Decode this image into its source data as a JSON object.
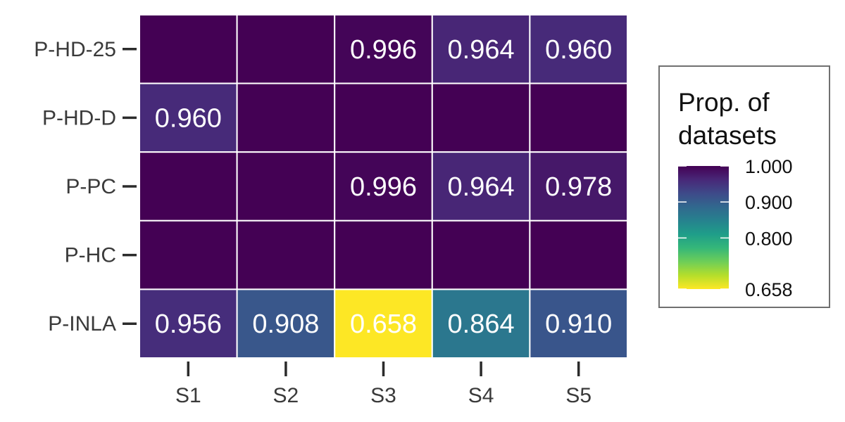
{
  "chart_data": {
    "type": "heatmap",
    "x_categories": [
      "S1",
      "S2",
      "S3",
      "S4",
      "S5"
    ],
    "y_categories": [
      "P-HD-25",
      "P-HD-D",
      "P-PC",
      "P-HC",
      "P-INLA"
    ],
    "values": [
      [
        1.0,
        1.0,
        0.996,
        0.964,
        0.96
      ],
      [
        0.96,
        1.0,
        1.0,
        1.0,
        1.0
      ],
      [
        1.0,
        1.0,
        0.996,
        0.964,
        0.978
      ],
      [
        1.0,
        1.0,
        1.0,
        1.0,
        1.0
      ],
      [
        0.956,
        0.908,
        0.658,
        0.864,
        0.91
      ]
    ],
    "labels": [
      [
        "",
        "",
        "0.996",
        "0.964",
        "0.960"
      ],
      [
        "0.960",
        "",
        "",
        "",
        ""
      ],
      [
        "",
        "",
        "0.996",
        "0.964",
        "0.978"
      ],
      [
        "",
        "",
        "",
        "",
        ""
      ],
      [
        "0.956",
        "0.908",
        "0.658",
        "0.864",
        "0.910"
      ]
    ],
    "colorbar": {
      "title_lines": [
        "Prop. of",
        "datasets"
      ],
      "range": [
        0.658,
        1.0
      ],
      "ticks": [
        1.0,
        0.9,
        0.8,
        0.658
      ],
      "tick_labels": [
        "1.000",
        "0.900",
        "0.800",
        "0.658"
      ],
      "colormap": "viridis (reversed)",
      "placement": "right"
    }
  },
  "colors": {
    "viridis_stops": [
      "#440154",
      "#482878",
      "#3e4a89",
      "#31688e",
      "#26828e",
      "#1f9e89",
      "#35b779",
      "#6ece58",
      "#b5de2b",
      "#fde725"
    ]
  }
}
